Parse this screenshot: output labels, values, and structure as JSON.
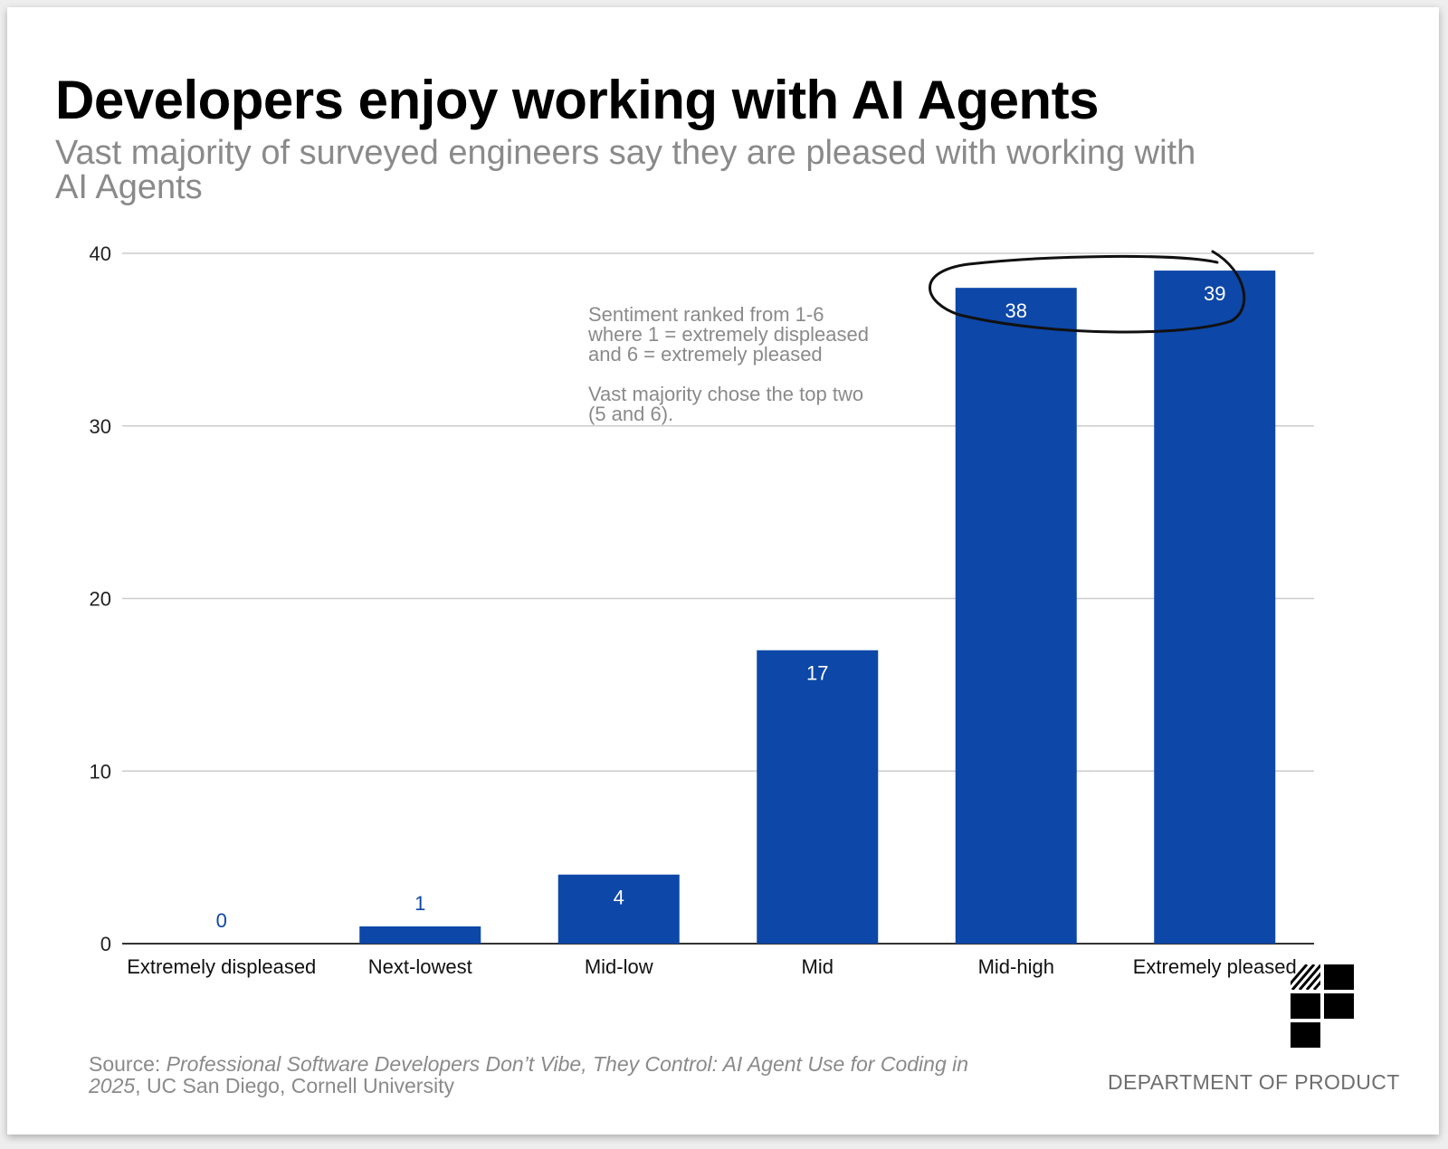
{
  "header": {
    "title": "Developers enjoy working with AI Agents",
    "subtitle": "Vast majority of surveyed engineers say they are pleased with working with AI Agents"
  },
  "annotation": {
    "text": "Sentiment ranked from 1-6\nwhere 1 = extremely displeased\nand 6 = extremely pleased\n\nVast majority chose the top two\n(5 and 6)."
  },
  "chart_data": {
    "type": "bar",
    "categories": [
      "Extremely displeased",
      "Next-lowest",
      "Mid-low",
      "Mid",
      "Mid-high",
      "Extremely pleased"
    ],
    "values": [
      0,
      1,
      4,
      17,
      38,
      39
    ],
    "title": "Developers enjoy working with AI Agents",
    "subtitle": "Vast majority of surveyed engineers say they are pleased with working with AI Agents",
    "xlabel": "",
    "ylabel": "",
    "ylim": [
      0,
      40
    ],
    "yticks": [
      0,
      10,
      20,
      30,
      40
    ],
    "grid": true,
    "legend": "none",
    "bar_color": "#0d47a8",
    "highlight": [
      "Mid-high",
      "Extremely pleased"
    ]
  },
  "footer": {
    "source_prefix": "Source: ",
    "source_title": "Professional Software Developers Don’t Vibe, They Control: AI Agent Use for Coding in 2025",
    "source_rest": ", UC San Diego, Cornell University",
    "brand": "DEPARTMENT OF PRODUCT"
  },
  "colors": {
    "bar": "#0d47a8",
    "title": "#000000",
    "muted": "#8a8a8a",
    "gridline": "#cccccc"
  }
}
